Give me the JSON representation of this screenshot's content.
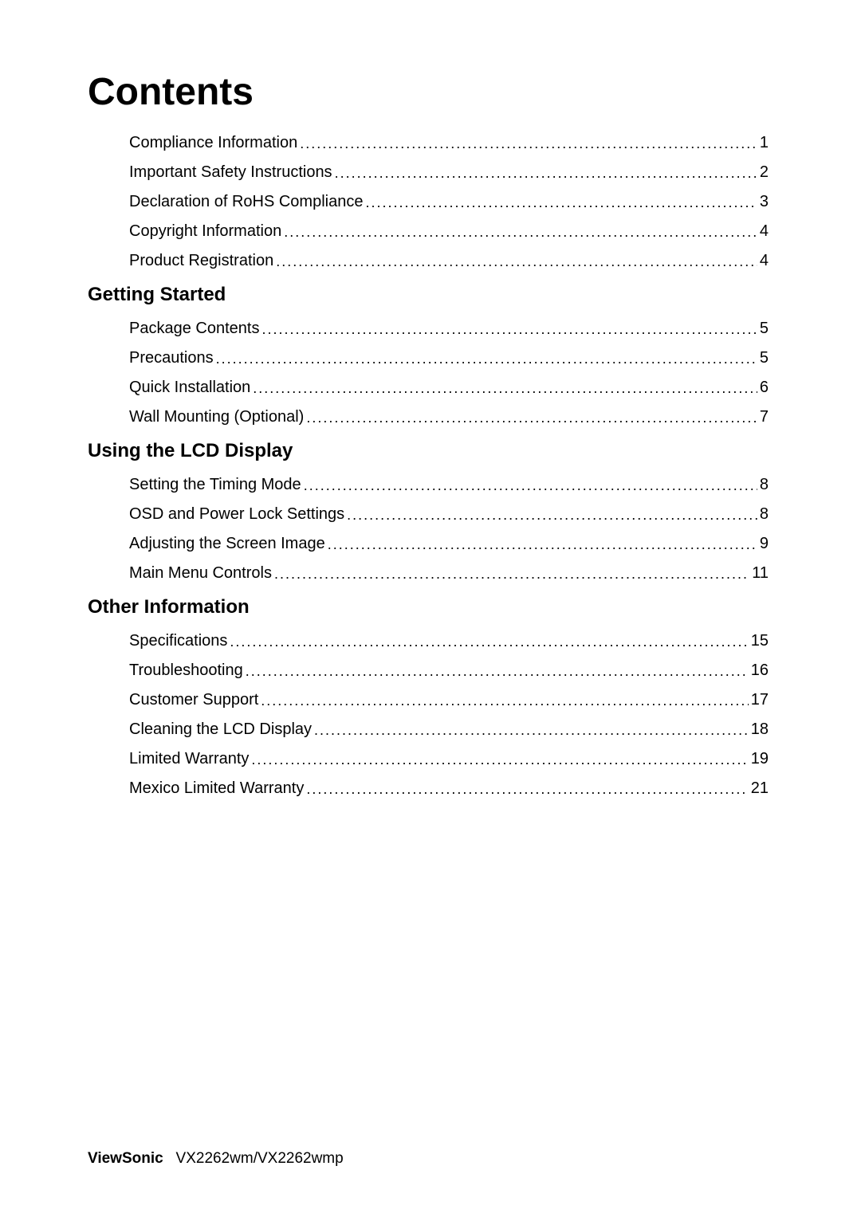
{
  "title": "Contents",
  "sections": {
    "intro": {
      "entries": [
        {
          "label": "Compliance Information",
          "page": "1"
        },
        {
          "label": "Important Safety Instructions",
          "page": "2"
        },
        {
          "label": "Declaration of RoHS Compliance",
          "page": "3"
        },
        {
          "label": "Copyright Information",
          "page": "4"
        },
        {
          "label": "Product Registration",
          "page": "4"
        }
      ]
    },
    "getting_started": {
      "heading": "Getting Started",
      "entries": [
        {
          "label": "Package Contents",
          "page": "5"
        },
        {
          "label": "Precautions",
          "page": "5"
        },
        {
          "label": "Quick Installation",
          "page": "6"
        },
        {
          "label": "Wall Mounting (Optional)",
          "page": "7"
        }
      ]
    },
    "using_lcd": {
      "heading": "Using the LCD Display",
      "entries": [
        {
          "label": "Setting the Timing Mode",
          "page": "8"
        },
        {
          "label": "OSD and Power Lock Settings",
          "page": "8"
        },
        {
          "label": "Adjusting the Screen Image",
          "page": "9"
        },
        {
          "label": "Main Menu Controls",
          "page": "11"
        }
      ]
    },
    "other_info": {
      "heading": "Other Information",
      "entries": [
        {
          "label": "Specifications",
          "page": "15"
        },
        {
          "label": "Troubleshooting",
          "page": "16"
        },
        {
          "label": "Customer Support",
          "page": "17"
        },
        {
          "label": "Cleaning the LCD Display",
          "page": "18"
        },
        {
          "label": "Limited Warranty",
          "page": "19"
        },
        {
          "label": "Mexico Limited Warranty",
          "page": "21"
        }
      ]
    }
  },
  "footer": {
    "brand": "ViewSonic",
    "model": "VX2262wm/VX2262wmp"
  }
}
